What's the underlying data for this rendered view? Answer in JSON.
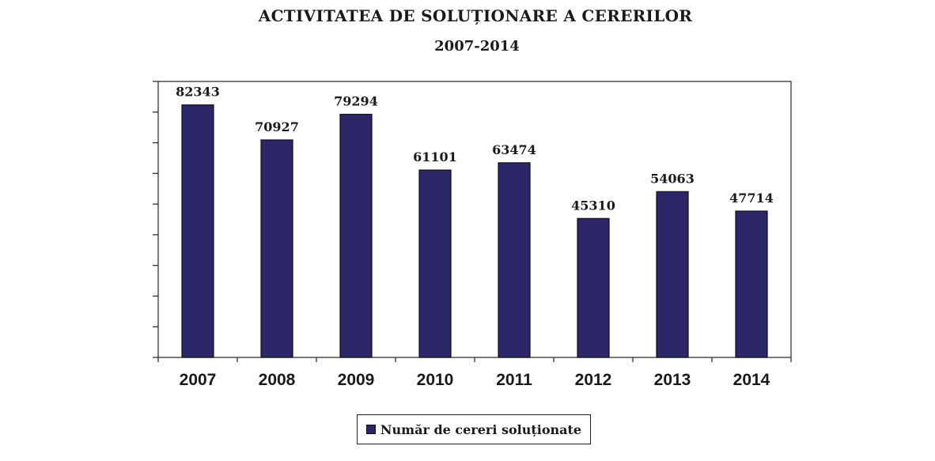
{
  "chart_data": {
    "type": "bar",
    "title": "ACTIVITATEA DE SOLUȚIONARE A CERERILOR",
    "subtitle": "2007-2014",
    "categories": [
      "2007",
      "2008",
      "2009",
      "2010",
      "2011",
      "2012",
      "2013",
      "2014"
    ],
    "series": [
      {
        "name": "Număr de cereri soluționate",
        "values": [
          82343,
          70927,
          79294,
          61101,
          63474,
          45310,
          54063,
          47714
        ],
        "color": "#2a2668"
      }
    ],
    "data_labels": [
      "82343",
      "70927",
      "79294",
      "61101",
      "63474",
      "45310",
      "54063",
      "47714"
    ],
    "xlabel": "",
    "ylabel": "",
    "ylim": [
      0,
      90000
    ],
    "grid": false,
    "legend_position": "bottom"
  }
}
